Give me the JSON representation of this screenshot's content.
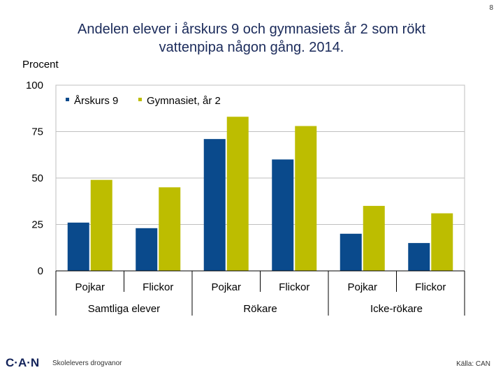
{
  "page_number": "8",
  "colors": {
    "series1": "#0a4a8c",
    "series2": "#bdbd00",
    "axis": "#000000",
    "grid": "#bfbfbf",
    "title": "#1a2a5a"
  },
  "chart_data": {
    "type": "bar",
    "title": "Andelen elever i årskurs 9 och gymnasiets år 2 som rökt vattenpipa någon gång. 2014.",
    "title_lines": [
      "Andelen elever i årskurs 9 och gymnasiets år 2 som rökt",
      "vattenpipa någon gång. 2014."
    ],
    "ylabel": "Procent",
    "xlabel": "",
    "ylim": [
      0,
      100
    ],
    "yticks": [
      0,
      25,
      50,
      75,
      100
    ],
    "grid": true,
    "legend_position": "top-left",
    "categories": [
      "Pojkar",
      "Flickor",
      "Pojkar",
      "Flickor",
      "Pojkar",
      "Flickor"
    ],
    "groups": [
      "Samtliga elever",
      "Rökare",
      "Icke-rökare"
    ],
    "series": [
      {
        "name": "Årskurs 9",
        "values": [
          26,
          23,
          71,
          60,
          20,
          15
        ]
      },
      {
        "name": "Gymnasiet, år 2",
        "values": [
          49,
          45,
          83,
          78,
          35,
          31
        ]
      }
    ]
  },
  "footer": {
    "logo": "C·A·N",
    "subtitle": "Skolelevers drogvanor",
    "source": "Källa: CAN"
  }
}
